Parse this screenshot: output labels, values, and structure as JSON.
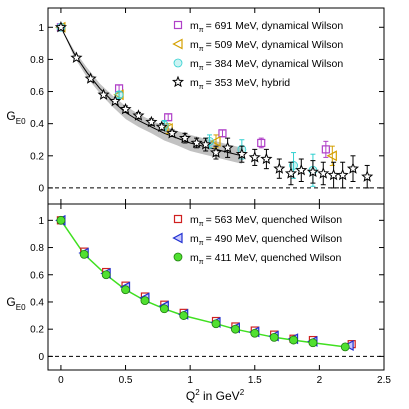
{
  "chart_data": [
    {
      "type": "scatter",
      "ylabel": "G",
      "ylabel_sub": "E0",
      "xlim": [
        -0.1,
        2.5
      ],
      "ylim": [
        -0.1,
        1.12
      ],
      "xticks": [
        0,
        0.5,
        1,
        1.5,
        2,
        2.5
      ],
      "xtick_labels": [
        "",
        "",
        "",
        "",
        "",
        ""
      ],
      "yticks": [
        0,
        0.2,
        0.4,
        0.6,
        0.8,
        1
      ],
      "ytick_labels": [
        "0",
        "0.2",
        "0.4",
        "0.6",
        "0.8",
        "1"
      ],
      "zero_line": "dashed",
      "legend_position": "top-right",
      "fit_band": {
        "x": [
          0,
          0.1,
          0.2,
          0.3,
          0.4,
          0.5,
          0.6,
          0.7,
          0.8,
          0.9,
          1.0,
          1.1,
          1.2,
          1.3,
          1.4
        ],
        "y": [
          1.0,
          0.84,
          0.72,
          0.62,
          0.54,
          0.47,
          0.42,
          0.38,
          0.34,
          0.31,
          0.28,
          0.26,
          0.24,
          0.22,
          0.2
        ],
        "half_width": [
          0.0,
          0.02,
          0.03,
          0.03,
          0.035,
          0.04,
          0.04,
          0.04,
          0.045,
          0.045,
          0.05,
          0.05,
          0.05,
          0.05,
          0.05
        ]
      },
      "series": [
        {
          "name": "= 691 MeV, dynamical Wilson",
          "legend_prefix": "m",
          "legend_sub": "π",
          "marker": "square",
          "color": "#b040c8",
          "x": [
            0.0,
            0.45,
            0.83,
            1.25,
            1.55,
            2.05
          ],
          "y": [
            1.0,
            0.62,
            0.44,
            0.34,
            0.28,
            0.24
          ],
          "err": [
            0,
            0.02,
            0.02,
            0.02,
            0.03,
            0.05
          ]
        },
        {
          "name": "= 509 MeV, dynamical Wilson",
          "legend_prefix": "m",
          "legend_sub": "π",
          "marker": "triangle-left",
          "color": "#d4a000",
          "x": [
            0.0,
            0.45,
            0.83,
            1.2,
            2.1
          ],
          "y": [
            1.0,
            0.58,
            0.37,
            0.29,
            0.2
          ],
          "err": [
            0,
            0.02,
            0.03,
            0.04,
            0.06
          ]
        },
        {
          "name": "= 384 MeV, dynamical Wilson",
          "legend_prefix": "m",
          "legend_sub": "π",
          "marker": "circle",
          "color": "#30d0d0",
          "x": [
            0.0,
            0.45,
            0.8,
            1.15,
            1.4,
            1.8,
            1.95
          ],
          "y": [
            1.0,
            0.58,
            0.39,
            0.29,
            0.24,
            0.14,
            0.11
          ],
          "err": [
            0,
            0.02,
            0.03,
            0.04,
            0.06,
            0.08,
            0.1
          ]
        },
        {
          "name": "= 353 MeV, hybrid",
          "legend_prefix": "m",
          "legend_sub": "π",
          "marker": "star",
          "color": "#000000",
          "x": [
            0.0,
            0.12,
            0.23,
            0.33,
            0.42,
            0.5,
            0.6,
            0.7,
            0.78,
            0.86,
            0.96,
            1.05,
            1.12,
            1.2,
            1.29,
            1.4,
            1.5,
            1.59,
            1.69,
            1.78,
            1.86,
            1.95,
            2.03,
            2.11,
            2.18,
            2.26,
            2.37
          ],
          "y": [
            1.0,
            0.81,
            0.68,
            0.58,
            0.54,
            0.49,
            0.45,
            0.41,
            0.38,
            0.34,
            0.31,
            0.28,
            0.27,
            0.22,
            0.25,
            0.21,
            0.19,
            0.18,
            0.12,
            0.09,
            0.11,
            0.1,
            0.09,
            0.08,
            0.08,
            0.12,
            0.07
          ],
          "err": [
            0,
            0.01,
            0.01,
            0.01,
            0.01,
            0.02,
            0.02,
            0.02,
            0.02,
            0.02,
            0.03,
            0.03,
            0.04,
            0.04,
            0.06,
            0.05,
            0.05,
            0.06,
            0.06,
            0.07,
            0.07,
            0.07,
            0.07,
            0.08,
            0.08,
            0.08,
            0.07
          ]
        }
      ]
    },
    {
      "type": "line",
      "ylabel": "G",
      "ylabel_sub": "E0",
      "xlabel": "Q",
      "xlabel_sup": "2",
      "xlabel_rest": " in GeV",
      "xlabel_sup2": "2",
      "xlim": [
        -0.1,
        2.5
      ],
      "ylim": [
        -0.1,
        1.12
      ],
      "xticks": [
        0,
        0.5,
        1,
        1.5,
        2,
        2.5
      ],
      "xtick_labels": [
        "0",
        "0.5",
        "1",
        "1.5",
        "2",
        "2.5"
      ],
      "yticks": [
        0,
        0.2,
        0.4,
        0.6,
        0.8,
        1
      ],
      "ytick_labels": [
        "0",
        "0.2",
        "0.4",
        "0.6",
        "0.8",
        "1"
      ],
      "zero_line": "dashed",
      "legend_position": "top-right",
      "series": [
        {
          "name": "= 563 MeV, quenched Wilson",
          "legend_prefix": "m",
          "legend_sub": "π",
          "marker": "square",
          "color": "#d02020",
          "x": [
            0.0,
            0.18,
            0.35,
            0.5,
            0.65,
            0.8,
            0.95,
            1.2,
            1.35,
            1.5,
            1.65,
            1.8,
            1.95,
            2.25
          ],
          "y": [
            1.0,
            0.77,
            0.62,
            0.52,
            0.44,
            0.38,
            0.32,
            0.26,
            0.22,
            0.19,
            0.16,
            0.13,
            0.12,
            0.09
          ]
        },
        {
          "name": "= 490 MeV, quenched Wilson",
          "legend_prefix": "m",
          "legend_sub": "π",
          "marker": "triangle-left",
          "color": "#2030d0",
          "x": [
            0.0,
            0.18,
            0.35,
            0.5,
            0.65,
            0.8,
            0.95,
            1.2,
            1.35,
            1.5,
            1.65,
            1.8,
            1.95,
            2.23
          ],
          "y": [
            1.0,
            0.76,
            0.61,
            0.51,
            0.43,
            0.37,
            0.31,
            0.25,
            0.21,
            0.18,
            0.15,
            0.13,
            0.11,
            0.08
          ]
        },
        {
          "name": "= 411 MeV, quenched Wilson",
          "legend_prefix": "m",
          "legend_sub": "π",
          "marker": "circle",
          "color": "#50e030",
          "fit_line": true,
          "x": [
            0.0,
            0.18,
            0.35,
            0.5,
            0.65,
            0.8,
            0.95,
            1.2,
            1.35,
            1.5,
            1.65,
            1.8,
            1.95,
            2.2
          ],
          "y": [
            1.0,
            0.75,
            0.6,
            0.49,
            0.41,
            0.35,
            0.3,
            0.24,
            0.2,
            0.17,
            0.14,
            0.12,
            0.1,
            0.07
          ]
        }
      ]
    }
  ]
}
